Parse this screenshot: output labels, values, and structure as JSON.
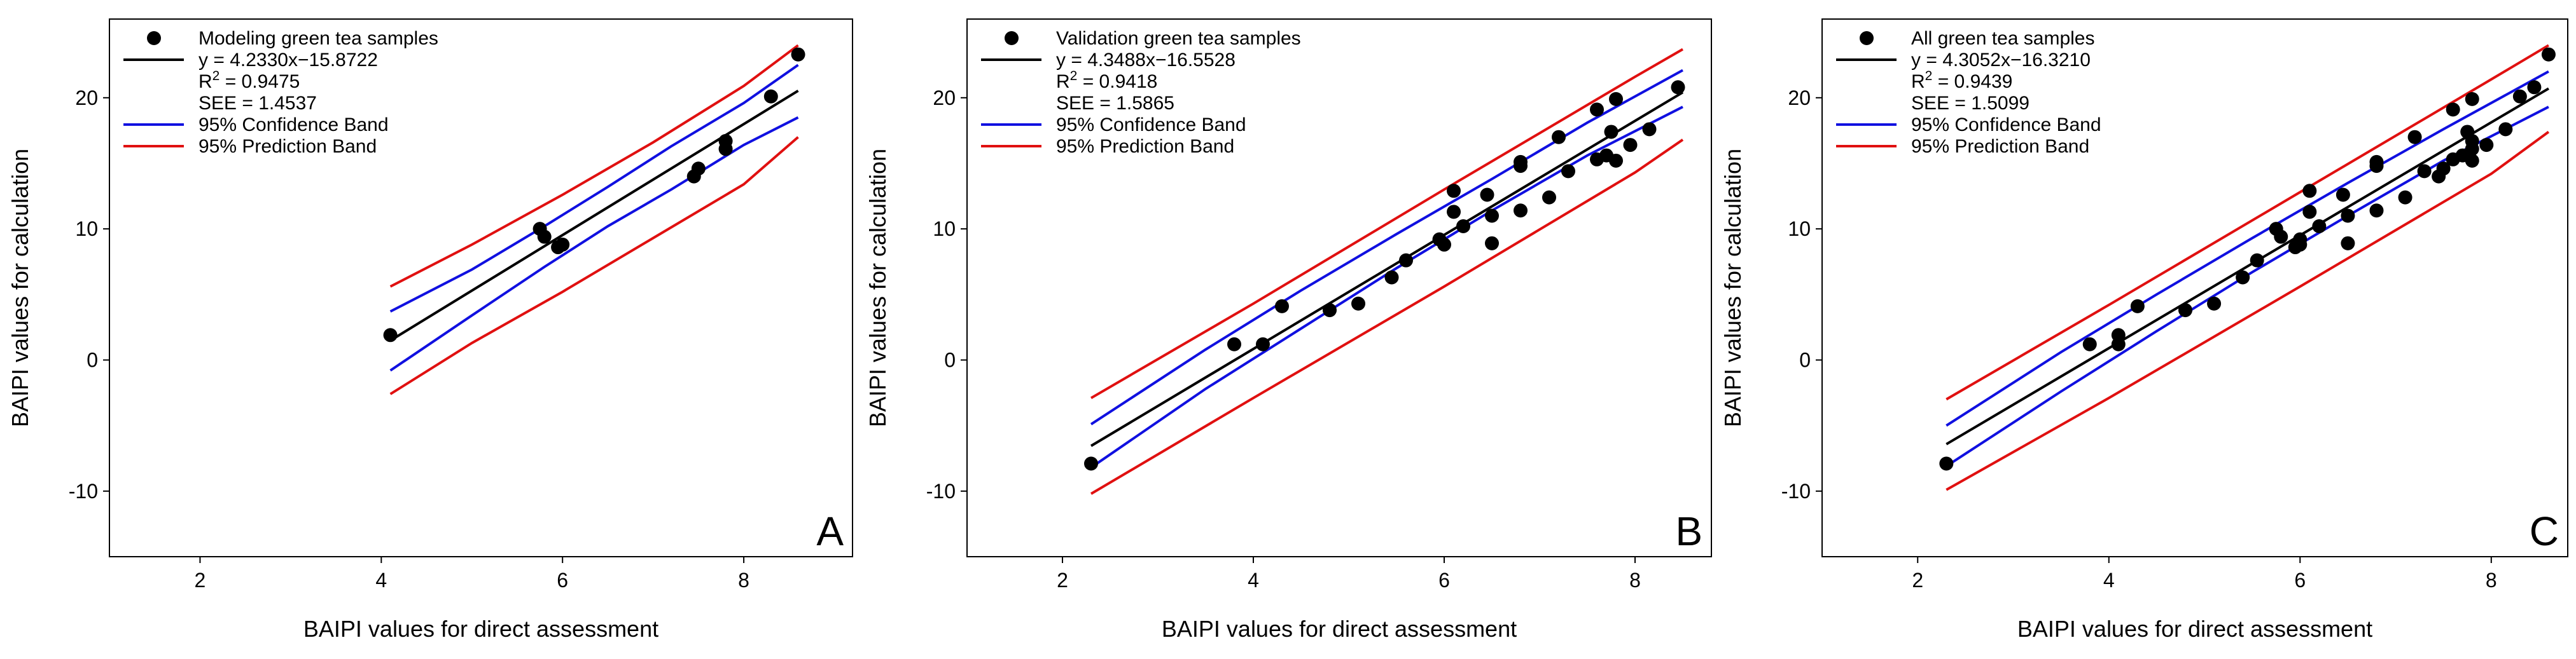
{
  "colors": {
    "line": "#000000",
    "confidence": "#1010e0",
    "prediction": "#e01010",
    "points": "#000000"
  },
  "chart_data": [
    {
      "type": "scatter",
      "panel_label": "A",
      "xlabel": "BAIPI values for direct assessment",
      "ylabel": "BAIPI values for calculation",
      "xlim": [
        1,
        9.2
      ],
      "ylim": [
        -15,
        26
      ],
      "xticks": [
        2,
        4,
        6,
        8
      ],
      "yticks": [
        -10,
        0,
        10,
        20
      ],
      "legend": {
        "position": "top-left",
        "points_label": "Modeling green tea samples",
        "equation": "y = 4.2330x−15.8722",
        "r2_prefix": "R",
        "r2_sup": "2",
        "r2_value": " = 0.9475",
        "see": "SEE = 1.4537",
        "confidence_label": "95% Confidence Band",
        "prediction_label": "95% Prediction Band"
      },
      "fit": {
        "slope": 4.233,
        "intercept": -15.8722,
        "x_range": [
          4.1,
          8.6
        ]
      },
      "confidence_band": {
        "upper": [
          [
            4.1,
            3.7
          ],
          [
            5.0,
            6.9
          ],
          [
            5.8,
            10.2
          ],
          [
            6.5,
            13.2
          ],
          [
            7.2,
            16.3
          ],
          [
            8.0,
            19.6
          ],
          [
            8.6,
            22.5
          ]
        ],
        "lower": [
          [
            4.1,
            -0.8
          ],
          [
            5.0,
            3.4
          ],
          [
            5.8,
            7.1
          ],
          [
            6.5,
            10.2
          ],
          [
            7.2,
            13.0
          ],
          [
            8.0,
            16.4
          ],
          [
            8.6,
            18.5
          ]
        ]
      },
      "prediction_band": {
        "upper": [
          [
            4.1,
            5.6
          ],
          [
            5.0,
            8.8
          ],
          [
            6.0,
            12.6
          ],
          [
            7.0,
            16.6
          ],
          [
            8.0,
            20.9
          ],
          [
            8.6,
            24.0
          ]
        ],
        "lower": [
          [
            4.1,
            -2.6
          ],
          [
            5.0,
            1.3
          ],
          [
            6.0,
            5.2
          ],
          [
            7.0,
            9.3
          ],
          [
            8.0,
            13.4
          ],
          [
            8.6,
            17.0
          ]
        ]
      },
      "points": [
        [
          4.1,
          1.9
        ],
        [
          5.75,
          10.0
        ],
        [
          5.8,
          9.4
        ],
        [
          5.95,
          8.6
        ],
        [
          6.0,
          8.8
        ],
        [
          7.45,
          14.0
        ],
        [
          7.5,
          14.6
        ],
        [
          7.8,
          16.1
        ],
        [
          7.8,
          16.7
        ],
        [
          8.3,
          20.1
        ],
        [
          8.6,
          23.3
        ]
      ]
    },
    {
      "type": "scatter",
      "panel_label": "B",
      "xlabel": "BAIPI values for direct assessment",
      "ylabel": "BAIPI values for calculation",
      "xlim": [
        1,
        8.8
      ],
      "ylim": [
        -15,
        26
      ],
      "xticks": [
        2,
        4,
        6,
        8
      ],
      "yticks": [
        -10,
        0,
        10,
        20
      ],
      "legend": {
        "position": "top-left",
        "points_label": "Validation green tea samples",
        "equation": "y = 4.3488x−16.5528",
        "r2_prefix": "R",
        "r2_sup": "2",
        "r2_value": " = 0.9418",
        "see": "SEE = 1.5865",
        "confidence_label": "95% Confidence Band",
        "prediction_label": "95% Prediction Band"
      },
      "fit": {
        "slope": 4.3488,
        "intercept": -16.5528,
        "x_range": [
          2.3,
          8.5
        ]
      },
      "confidence_band": {
        "upper": [
          [
            2.3,
            -4.9
          ],
          [
            3.5,
            0.8
          ],
          [
            4.5,
            5.3
          ],
          [
            5.5,
            9.6
          ],
          [
            6.5,
            13.8
          ],
          [
            7.5,
            18.1
          ],
          [
            8.5,
            22.1
          ]
        ],
        "lower": [
          [
            2.3,
            -8.2
          ],
          [
            3.5,
            -2.2
          ],
          [
            4.5,
            2.4
          ],
          [
            5.5,
            7.0
          ],
          [
            6.5,
            11.4
          ],
          [
            7.5,
            15.6
          ],
          [
            8.5,
            19.3
          ]
        ]
      },
      "prediction_band": {
        "upper": [
          [
            2.3,
            -2.9
          ],
          [
            4.0,
            4.3
          ],
          [
            6.0,
            13.0
          ],
          [
            8.0,
            21.6
          ],
          [
            8.5,
            23.7
          ]
        ],
        "lower": [
          [
            2.3,
            -10.2
          ],
          [
            4.0,
            -2.9
          ],
          [
            6.0,
            5.6
          ],
          [
            8.0,
            14.3
          ],
          [
            8.5,
            16.8
          ]
        ]
      },
      "points": [
        [
          2.3,
          -7.9
        ],
        [
          3.8,
          1.2
        ],
        [
          4.1,
          1.2
        ],
        [
          4.3,
          4.1
        ],
        [
          4.8,
          3.8
        ],
        [
          5.1,
          4.3
        ],
        [
          5.45,
          6.3
        ],
        [
          5.6,
          7.6
        ],
        [
          5.95,
          9.2
        ],
        [
          6.0,
          8.8
        ],
        [
          6.1,
          11.3
        ],
        [
          6.1,
          12.9
        ],
        [
          6.2,
          10.2
        ],
        [
          6.45,
          12.6
        ],
        [
          6.5,
          11.0
        ],
        [
          6.5,
          8.9
        ],
        [
          6.8,
          11.4
        ],
        [
          6.8,
          14.8
        ],
        [
          6.8,
          15.1
        ],
        [
          7.1,
          12.4
        ],
        [
          7.2,
          17.0
        ],
        [
          7.3,
          14.4
        ],
        [
          7.6,
          15.3
        ],
        [
          7.6,
          19.1
        ],
        [
          7.7,
          15.6
        ],
        [
          7.75,
          17.4
        ],
        [
          7.8,
          19.9
        ],
        [
          7.8,
          15.2
        ],
        [
          7.95,
          16.4
        ],
        [
          8.15,
          17.6
        ],
        [
          8.45,
          20.8
        ]
      ]
    },
    {
      "type": "scatter",
      "panel_label": "C",
      "xlabel": "BAIPI values for direct assessment",
      "ylabel": "BAIPI values for calculation",
      "xlim": [
        1,
        8.8
      ],
      "ylim": [
        -15,
        26
      ],
      "xticks": [
        2,
        4,
        6,
        8
      ],
      "yticks": [
        -10,
        0,
        10,
        20
      ],
      "legend": {
        "position": "top-left",
        "points_label": "All green tea samples",
        "equation": "y = 4.3052x−16.3210",
        "r2_prefix": "R",
        "r2_sup": "2",
        "r2_value": " = 0.9439",
        "see": "SEE = 1.5099",
        "confidence_label": "95% Confidence Band",
        "prediction_label": "95% Prediction Band"
      },
      "fit": {
        "slope": 4.3052,
        "intercept": -16.321,
        "x_range": [
          2.3,
          8.6
        ]
      },
      "confidence_band": {
        "upper": [
          [
            2.3,
            -5.0
          ],
          [
            3.5,
            0.6
          ],
          [
            4.5,
            5.0
          ],
          [
            5.5,
            9.3
          ],
          [
            6.5,
            13.5
          ],
          [
            7.5,
            17.6
          ],
          [
            8.6,
            22.0
          ]
        ],
        "lower": [
          [
            2.3,
            -8.1
          ],
          [
            3.5,
            -2.4
          ],
          [
            4.5,
            2.2
          ],
          [
            5.5,
            6.7
          ],
          [
            6.5,
            11.0
          ],
          [
            7.5,
            15.2
          ],
          [
            8.6,
            19.3
          ]
        ]
      },
      "prediction_band": {
        "upper": [
          [
            2.3,
            -3.0
          ],
          [
            4.0,
            4.2
          ],
          [
            6.0,
            12.8
          ],
          [
            8.0,
            21.4
          ],
          [
            8.6,
            24.0
          ]
        ],
        "lower": [
          [
            2.3,
            -9.9
          ],
          [
            4.0,
            -2.9
          ],
          [
            6.0,
            5.6
          ],
          [
            8.0,
            14.2
          ],
          [
            8.6,
            17.4
          ]
        ]
      },
      "points": [
        [
          2.3,
          -7.9
        ],
        [
          3.8,
          1.2
        ],
        [
          4.1,
          1.2
        ],
        [
          4.1,
          1.9
        ],
        [
          4.3,
          4.1
        ],
        [
          4.8,
          3.8
        ],
        [
          5.1,
          4.3
        ],
        [
          5.4,
          6.3
        ],
        [
          5.55,
          7.6
        ],
        [
          5.75,
          10.0
        ],
        [
          5.8,
          9.4
        ],
        [
          5.95,
          8.6
        ],
        [
          6.0,
          8.8
        ],
        [
          6.0,
          9.2
        ],
        [
          6.1,
          11.3
        ],
        [
          6.1,
          12.9
        ],
        [
          6.2,
          10.2
        ],
        [
          6.45,
          12.6
        ],
        [
          6.5,
          11.0
        ],
        [
          6.5,
          8.9
        ],
        [
          6.8,
          11.4
        ],
        [
          6.8,
          14.8
        ],
        [
          6.8,
          15.1
        ],
        [
          7.1,
          12.4
        ],
        [
          7.2,
          17.0
        ],
        [
          7.3,
          14.4
        ],
        [
          7.45,
          14.0
        ],
        [
          7.5,
          14.6
        ],
        [
          7.6,
          15.3
        ],
        [
          7.6,
          19.1
        ],
        [
          7.7,
          15.6
        ],
        [
          7.75,
          17.4
        ],
        [
          7.8,
          16.1
        ],
        [
          7.8,
          16.7
        ],
        [
          7.8,
          19.9
        ],
        [
          7.8,
          15.2
        ],
        [
          7.95,
          16.4
        ],
        [
          8.15,
          17.6
        ],
        [
          8.3,
          20.1
        ],
        [
          8.45,
          20.8
        ],
        [
          8.6,
          23.3
        ]
      ]
    }
  ]
}
